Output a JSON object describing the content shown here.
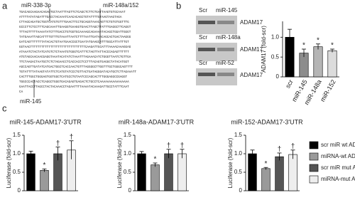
{
  "panel_labels": [
    "a",
    "b",
    "c"
  ],
  "sequence": {
    "sites": [
      "miR-338-3p",
      "miR-148a/152",
      "miR-145"
    ],
    "lines": [
      "TGACAGCAAGAACAGAGTGCTAATTTAGTTCTCAGCTCTTCTGATTAAGTGTGCAAAT",
      "ATTTTATATAGATTTGACCTACAAATCAACACAGCTGTATTTTGTAAGTAAGTAGA",
      "CTTAGCAGATGCTGGTCATGTGTTTGAACTTCCTGCAGGTAAACAGTTCTGTGTGGTTTG",
      "GCCCTTCTCCTTTCAGCAAATTGAAGGTGAAGGTGAACTTAGCTTATTTGAGGCTTCAGGT",
      "TTTAGTTTTTAAAATATCTTTGACCTGTGGTGCAAAAGCAGAAAATACAGCTGGATTGGGT",
      "TATGAAATTAGCATTTTGTTTGTAAATTAATCTTTTAATTGATAACAGCACTGACTAAGGG",
      "GATCAGTTTTTTTATACACTGTAATGAACCGCTGAATATGAAGCATTTGGCATTATTTGT",
      "GGTAACTTTTTTTTTTTTTTTTTTTTTTTTTTTTTTCAAGATTGCATTTAAAACAAAGGAG",
      "ATAAATCTACTATCATGTCTCTAAATGTGGGTCATTTCTAGTTATTACCCAGAGTTTTTT",
      "ATGTAGCAACAACGAGGTAAATACATATCTAAATTTAGAAACATCTGGGTTAATCTGTTGA",
      "TTCTAAGACTAATGCTCTCTAGAACCTCACCACCTCCTTTACAGTGAGGCTATACATGGT",
      "AGCCAGTTGATATCATGACTGGCTCACCAACTGTTTAGGGGCTTGGTTTGCTGGGCAGTTTT",
      "TGTATTTTATAAGTATATTCTCATGTATCCCTGTTACTGATAGGGATACATGCTCTTAGAAATT",
      "CACTTTGGCTGGGAGTGGTGGCTCATGCCTGTAATCCCAGCACTTTGGGAGGCCGAGGT",
      "TGGCCCACTACCTCAGGCTGGGTGACAGAGTGAGACTCTGCCTCAAAAAAAAAAAAAAAA",
      "GAATTACCTTAGCCTACTACAAACCTAGAATTTTAAAATACAAAGATTGCCTATTTCAAT",
      "CA"
    ]
  },
  "blots": [
    {
      "control": "Scr",
      "mirna": "miR-145",
      "protein": "ADAM17"
    },
    {
      "control": "Scr",
      "mirna": "miR-148a",
      "protein": "ADAM17"
    },
    {
      "control": "Scr",
      "mirna": "miR-52",
      "protein": "ADAM17"
    }
  ],
  "legend": [
    {
      "name": "scr miR wt ADAM17",
      "color": "#000000"
    },
    {
      "name": "miRNA-wt ADAM17",
      "color": "#9a9a9a"
    },
    {
      "name": "scr miR mut ADAM17",
      "color": "#555555"
    },
    {
      "name": "miRNA-mut ADAM17",
      "color": "#eeeeee"
    }
  ],
  "chart_data": [
    {
      "type": "bar",
      "ylabel": "ADAM17 (fold-scr)",
      "categories": [
        "scr",
        "miR-145",
        "miR-148a",
        "miR-152"
      ],
      "values": [
        1.0,
        0.6,
        0.76,
        0.66
      ],
      "errors": [
        0.2,
        0.1,
        0.07,
        0.04
      ],
      "annotations": [
        null,
        "*",
        "*",
        "*"
      ],
      "colors": [
        "#000000",
        "#8c8c8c",
        "#b5b5b5",
        "#dcdcdc"
      ],
      "ylim": [
        0,
        1.4
      ],
      "yticks": [
        0,
        0.5,
        {
          "value": 1,
          "label": "1.0"
        }
      ]
    },
    {
      "type": "bar",
      "title": "miR-145-ADAM17-3'UTR",
      "ylabel": "Luciferase (fold-scr)",
      "values": [
        1.0,
        0.55,
        1.0,
        1.1
      ],
      "errors": [
        0.07,
        0.04,
        0.18,
        0.25
      ],
      "annotations": [
        null,
        "*",
        "†",
        "†"
      ],
      "colors": [
        "#000000",
        "#9a9a9a",
        "#555555",
        "#eeeeee"
      ],
      "ylim": [
        0,
        1.5
      ],
      "yticks": [
        0,
        0.5,
        {
          "value": 1,
          "label": "1.0"
        },
        1.5
      ]
    },
    {
      "type": "bar",
      "title": "miR-148a-ADAM17-3'UTR",
      "ylabel": "Luciferase (fold-scr)",
      "values": [
        1.0,
        0.7,
        1.0,
        1.0
      ],
      "errors": [
        0.06,
        0.05,
        0.12,
        0.12
      ],
      "annotations": [
        null,
        "*",
        "†",
        "†"
      ],
      "colors": [
        "#000000",
        "#9a9a9a",
        "#555555",
        "#eeeeee"
      ],
      "ylim": [
        0,
        1.5
      ],
      "yticks": [
        0,
        0.5,
        {
          "value": 1,
          "label": "1.0"
        },
        1.5
      ]
    },
    {
      "type": "bar",
      "title": "miR-152-ADAM17-3'UTR",
      "ylabel": "Luciferase (fold-scr)",
      "values": [
        1.0,
        0.6,
        0.92,
        0.98
      ],
      "errors": [
        0.1,
        0.03,
        0.1,
        0.12
      ],
      "annotations": [
        null,
        "*",
        "†",
        "†"
      ],
      "colors": [
        "#000000",
        "#9a9a9a",
        "#555555",
        "#eeeeee"
      ],
      "ylim": [
        0,
        1.5
      ],
      "yticks": [
        0,
        0.5,
        {
          "value": 1,
          "label": "1.0"
        },
        1.5
      ]
    }
  ]
}
